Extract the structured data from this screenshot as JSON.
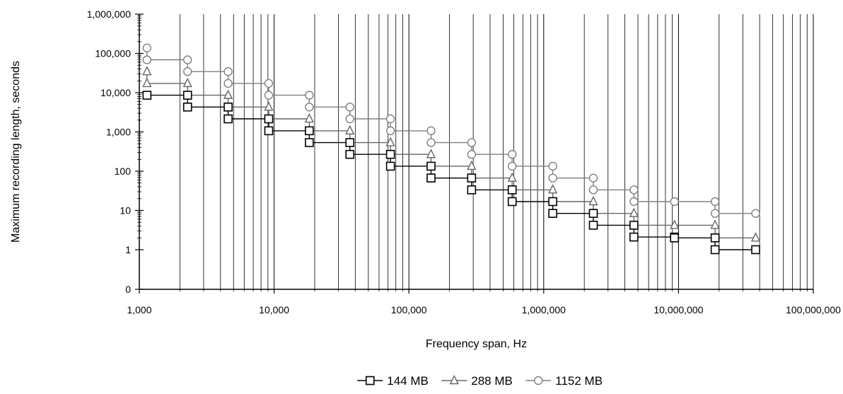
{
  "chart_data": {
    "type": "line",
    "title": "",
    "xlabel": "Frequency span, Hz",
    "ylabel": "Maximum recording length, seconds",
    "x_scale": "log",
    "y_scale": "log",
    "xlim": [
      1000,
      100000000
    ],
    "ylim": [
      0,
      1000000
    ],
    "x_ticks": [
      {
        "value": 1000,
        "label": "1,000"
      },
      {
        "value": 10000,
        "label": "10,000"
      },
      {
        "value": 100000,
        "label": "100,000"
      },
      {
        "value": 1000000,
        "label": "1,000,000"
      },
      {
        "value": 10000000,
        "label": "10,000,000"
      },
      {
        "value": 100000000,
        "label": "100,000,000"
      }
    ],
    "y_ticks": [
      {
        "value": 0,
        "label": "0"
      },
      {
        "value": 1,
        "label": "1"
      },
      {
        "value": 10,
        "label": "10"
      },
      {
        "value": 100,
        "label": "100"
      },
      {
        "value": 1000,
        "label": "1,000"
      },
      {
        "value": 10000,
        "label": "10,000"
      },
      {
        "value": 100000,
        "label": "100,000"
      },
      {
        "value": 1000000,
        "label": "1,000,000"
      }
    ],
    "grid": "vertical major and minor gridlines",
    "legend_position": "bottom",
    "step_style": "horizontal-then-vertical",
    "series": [
      {
        "name": "144 MB",
        "marker": "square",
        "color": "#000000",
        "points": [
          [
            1140,
            8600
          ],
          [
            2280,
            8600
          ],
          [
            2280,
            4300
          ],
          [
            4560,
            4300
          ],
          [
            4560,
            2150
          ],
          [
            9120,
            2150
          ],
          [
            9120,
            1070
          ],
          [
            18240,
            1070
          ],
          [
            18240,
            535
          ],
          [
            36480,
            535
          ],
          [
            36480,
            268
          ],
          [
            72960,
            268
          ],
          [
            72960,
            134
          ],
          [
            145920,
            134
          ],
          [
            145920,
            67
          ],
          [
            291840,
            67
          ],
          [
            291840,
            33.5
          ],
          [
            583680,
            33.5
          ],
          [
            583680,
            16.8
          ],
          [
            1167360,
            16.8
          ],
          [
            1167360,
            8.4
          ],
          [
            2334720,
            8.4
          ],
          [
            2334720,
            4.2
          ],
          [
            4669440,
            4.2
          ],
          [
            4669440,
            2.1
          ],
          [
            9338880,
            2.1
          ],
          [
            9338880,
            2.0
          ],
          [
            18677760,
            2.0
          ],
          [
            18677760,
            1.0
          ],
          [
            37355520,
            1.0
          ]
        ]
      },
      {
        "name": "288 MB",
        "marker": "triangle",
        "color": "#666666",
        "points": [
          [
            1140,
            34400
          ],
          [
            1140,
            17200
          ],
          [
            2280,
            17200
          ],
          [
            2280,
            8600
          ],
          [
            4560,
            8600
          ],
          [
            4560,
            4300
          ],
          [
            9120,
            4300
          ],
          [
            9120,
            2150
          ],
          [
            18240,
            2150
          ],
          [
            18240,
            1070
          ],
          [
            36480,
            1070
          ],
          [
            36480,
            535
          ],
          [
            72960,
            535
          ],
          [
            72960,
            268
          ],
          [
            145920,
            268
          ],
          [
            145920,
            134
          ],
          [
            291840,
            134
          ],
          [
            291840,
            67
          ],
          [
            583680,
            67
          ],
          [
            583680,
            33.5
          ],
          [
            1167360,
            33.5
          ],
          [
            1167360,
            16.8
          ],
          [
            2334720,
            16.8
          ],
          [
            2334720,
            8.4
          ],
          [
            4669440,
            8.4
          ],
          [
            4669440,
            4.2
          ],
          [
            9338880,
            4.2
          ],
          [
            18677760,
            4.2
          ],
          [
            18677760,
            2.0
          ],
          [
            37355520,
            2.0
          ]
        ]
      },
      {
        "name": "1152 MB",
        "marker": "circle",
        "color": "#808080",
        "points": [
          [
            1140,
            137600
          ],
          [
            1140,
            68800
          ],
          [
            2280,
            68800
          ],
          [
            2280,
            34400
          ],
          [
            4560,
            34400
          ],
          [
            4560,
            17200
          ],
          [
            9120,
            17200
          ],
          [
            9120,
            8600
          ],
          [
            18240,
            8600
          ],
          [
            18240,
            4300
          ],
          [
            36480,
            4300
          ],
          [
            36480,
            2150
          ],
          [
            72960,
            2150
          ],
          [
            72960,
            1070
          ],
          [
            145920,
            1070
          ],
          [
            145920,
            535
          ],
          [
            291840,
            535
          ],
          [
            291840,
            268
          ],
          [
            583680,
            268
          ],
          [
            583680,
            134
          ],
          [
            1167360,
            134
          ],
          [
            1167360,
            67
          ],
          [
            2334720,
            67
          ],
          [
            2334720,
            33.5
          ],
          [
            4669440,
            33.5
          ],
          [
            4669440,
            16.8
          ],
          [
            9338880,
            16.8
          ],
          [
            18677760,
            16.8
          ],
          [
            18677760,
            8.4
          ],
          [
            37355520,
            8.4
          ]
        ]
      }
    ]
  }
}
